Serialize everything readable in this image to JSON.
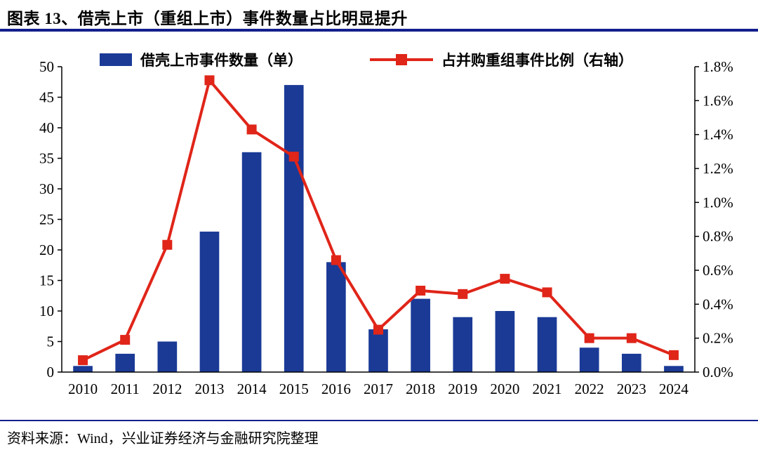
{
  "header": {
    "title": "图表 13、借壳上市（重组上市）事件数量占比明显提升"
  },
  "footer": {
    "source": "资料来源：Wind，兴业证券经济与金融研究院整理"
  },
  "chart_data": {
    "type": "bar",
    "subtype": "dual-axis combo: bars (left axis) + line with square markers (right axis)",
    "title": "借壳上市（重组上市）事件数量占比明显提升",
    "categories": [
      "2010",
      "2011",
      "2012",
      "2013",
      "2014",
      "2015",
      "2016",
      "2017",
      "2018",
      "2019",
      "2020",
      "2021",
      "2022",
      "2023",
      "2024"
    ],
    "series": [
      {
        "name": "借壳上市事件数量（单）",
        "type": "bar",
        "axis": "left",
        "values": [
          1,
          3,
          5,
          23,
          36,
          47,
          18,
          7,
          12,
          9,
          10,
          9,
          4,
          3,
          1
        ]
      },
      {
        "name": "占并购重组事件比例（右轴）",
        "type": "line",
        "axis": "right",
        "values": [
          0.07,
          0.19,
          0.75,
          1.72,
          1.43,
          1.27,
          0.66,
          0.25,
          0.48,
          0.46,
          0.55,
          0.47,
          0.2,
          0.2,
          0.1
        ]
      }
    ],
    "left_axis": {
      "min": 0,
      "max": 50,
      "step": 5
    },
    "right_axis": {
      "min": 0,
      "max": 1.8,
      "step": 0.2,
      "suffix": "%"
    },
    "legend_position": "top",
    "grid": false,
    "colors": {
      "bar": "#1a3a96",
      "line": "#e02519",
      "rule": "#131f8c",
      "axis": "#000000",
      "text": "#000000"
    }
  }
}
